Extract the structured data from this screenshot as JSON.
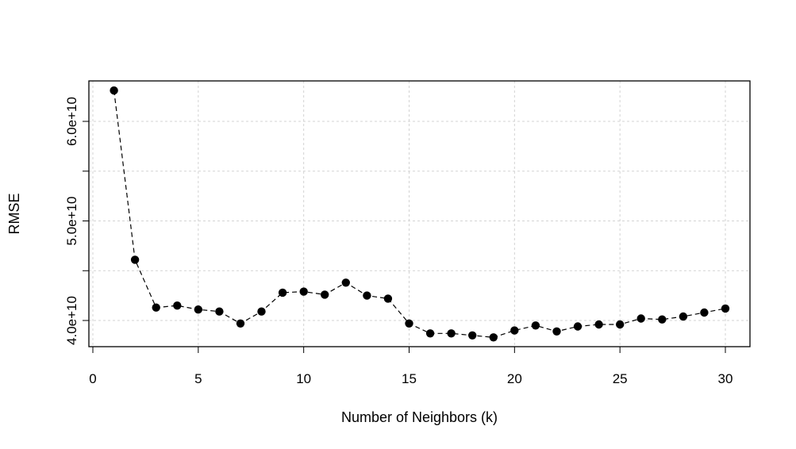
{
  "chart_data": {
    "type": "line",
    "title": "",
    "xlabel": "Number of Neighbors (k)",
    "ylabel": "RMSE",
    "xlim": [
      0,
      30
    ],
    "ylim": [
      37500000000.0,
      64000000000.0
    ],
    "xticks": [
      0,
      5,
      10,
      15,
      20,
      25,
      30
    ],
    "xtick_labels": [
      "0",
      "5",
      "10",
      "15",
      "20",
      "25",
      "30"
    ],
    "yticks": [
      40000000000.0,
      50000000000.0,
      60000000000.0
    ],
    "ytick_labels": [
      "4.0e+10",
      "5.0e+10",
      "6.0e+10"
    ],
    "minor_yticks": [
      45000000000.0,
      55000000000.0
    ],
    "grid": true,
    "legend": "none",
    "line_style": "dashed",
    "marker": "filled-circle",
    "colors": {
      "line": "#000000",
      "marker": "#000000",
      "grid": "#d3d3d3",
      "frame": "#000000"
    },
    "series": [
      {
        "x": [
          1,
          2,
          3,
          4,
          5,
          6,
          7,
          8,
          9,
          10,
          11,
          12,
          13,
          14,
          15,
          16,
          17,
          18,
          19,
          20,
          21,
          22,
          23,
          24,
          25,
          26,
          27,
          28,
          29,
          30
        ],
        "values": [
          63100000000.0,
          46100000000.0,
          41300000000.0,
          41500000000.0,
          41100000000.0,
          40900000000.0,
          39700000000.0,
          40900000000.0,
          42800000000.0,
          42900000000.0,
          42600000000.0,
          43800000000.0,
          42500000000.0,
          42200000000.0,
          39700000000.0,
          38700000000.0,
          38700000000.0,
          38500000000.0,
          38300000000.0,
          39000000000.0,
          39500000000.0,
          38900000000.0,
          39400000000.0,
          39600000000.0,
          39600000000.0,
          40200000000.0,
          40100000000.0,
          40400000000.0,
          40800000000.0,
          41200000000.0
        ]
      }
    ]
  }
}
